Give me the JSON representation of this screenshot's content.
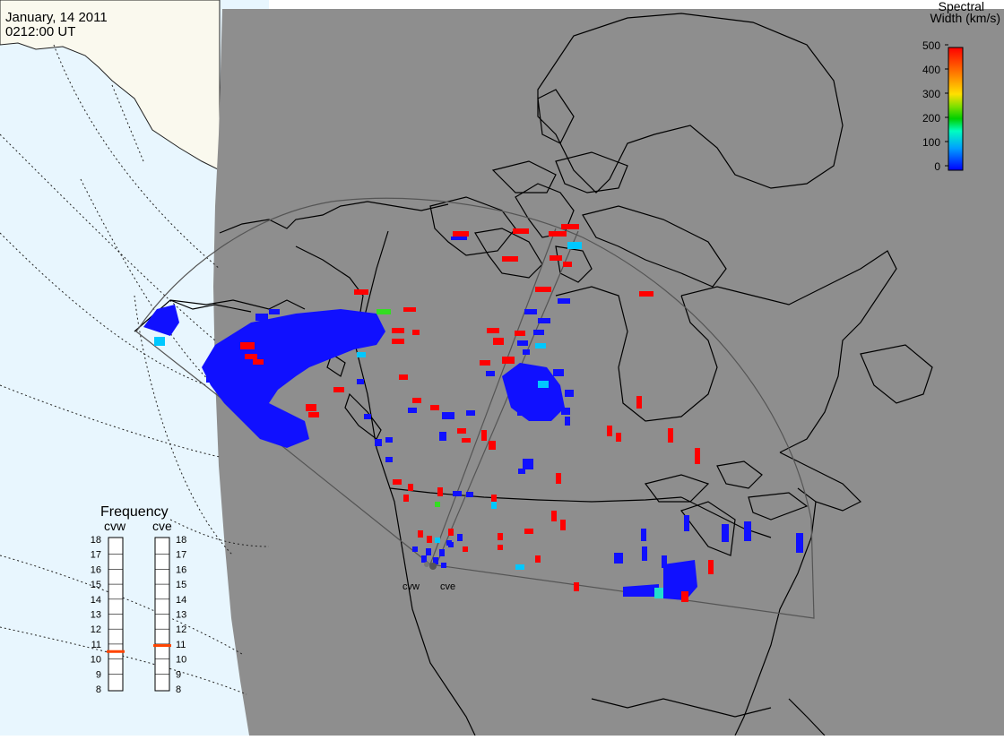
{
  "header": {
    "date": "January, 14 2011",
    "time": "0212:00 UT"
  },
  "colorbar": {
    "title_line1": "Spectral",
    "title_line2": "Width (km/s)",
    "ticks": [
      "500",
      "400",
      "300",
      "200",
      "100",
      "0"
    ]
  },
  "frequency_panel": {
    "title": "Frequency",
    "radars": [
      {
        "label": "cvw",
        "selected_mhz": 10.5
      },
      {
        "label": "cve",
        "selected_mhz": 10.9
      }
    ],
    "scale": [
      "18",
      "17",
      "16",
      "15",
      "14",
      "13",
      "12",
      "11",
      "10",
      "9",
      "8"
    ]
  },
  "radars": {
    "west_label": "cvw",
    "east_label": "cve"
  },
  "colors": {
    "night": "#8e8e8e",
    "ocean": "#e8f6fe",
    "land": "#faf9ee",
    "red": "#ff0000",
    "blue": "#1010ff",
    "cyan": "#00c8ff",
    "green": "#33dd22",
    "indicator": "#ff4400"
  }
}
